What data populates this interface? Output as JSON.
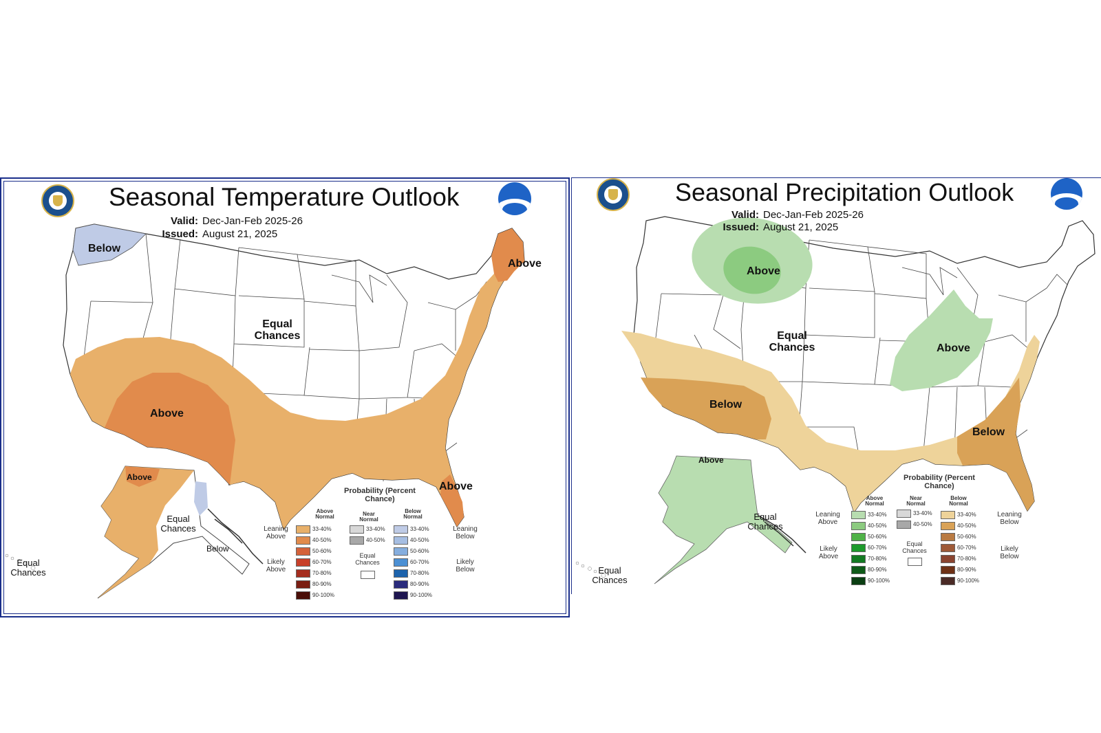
{
  "colors": {
    "above_33_40": "#E8B06A",
    "above_40_50": "#E18B4C",
    "above_50_60": "#D4623A",
    "above_60_70": "#C8402A",
    "above_70_80": "#A52D1E",
    "above_80_90": "#7A1E12",
    "above_90_100": "#4A0E08",
    "below_33_40": "#BFCBE6",
    "below_40_50": "#A6BEE2",
    "below_50_60": "#86AEDE",
    "below_60_70": "#4C90D4",
    "below_70_80": "#1D63AC",
    "below_80_90": "#2A2B7C",
    "below_90_100": "#1E1650",
    "wet_33_40": "#B8DDB0",
    "wet_40_50": "#8CCB80",
    "wet_50_60": "#4FB248",
    "wet_60_70": "#1E9A2C",
    "wet_70_80": "#137A22",
    "wet_80_90": "#0E5A18",
    "wet_90_100": "#0A3E12",
    "dry_33_40": "#EED39A",
    "dry_40_50": "#D9A257",
    "dry_50_60": "#B97A42",
    "dry_60_70": "#9E5A38",
    "dry_70_80": "#8A4430",
    "dry_80_90": "#6E3116",
    "dry_90_100": "#4A2A26",
    "near_33_40": "#D8D8D8",
    "near_40_50": "#A8A8A8",
    "panel_border": "#1A2E8A"
  },
  "temperature": {
    "title": "Seasonal Temperature Outlook",
    "valid_label": "Valid:",
    "valid_value": "Dec-Jan-Feb 2025-26",
    "issued_label": "Issued:",
    "issued_value": "August 21, 2025",
    "regions": {
      "nw_below": "Below",
      "ne_above": "Above",
      "center_ec": "Equal Chances",
      "sw_above": "Above",
      "fl_above": "Above",
      "ak_above": "Above",
      "ak_ec": "Equal Chances",
      "ak_below": "Below",
      "hi_ec": "Equal Chances"
    },
    "legend": {
      "title": "Probability (Percent Chance)",
      "above_header": "Above Normal",
      "near_header": "Near Normal",
      "below_header": "Below Normal",
      "leaning_above": "Leaning Above",
      "likely_above": "Likely Above",
      "leaning_below": "Leaning Below",
      "likely_below": "Likely Below",
      "equal_chances": "Equal Chances",
      "ranges": [
        "33-40%",
        "40-50%",
        "50-60%",
        "60-70%",
        "70-80%",
        "80-90%",
        "90-100%"
      ],
      "near_ranges": [
        "33-40%",
        "40-50%"
      ]
    }
  },
  "precipitation": {
    "title": "Seasonal Precipitation Outlook",
    "valid_label": "Valid:",
    "valid_value": "Dec-Jan-Feb 2025-26",
    "issued_label": "Issued:",
    "issued_value": "August 21, 2025",
    "regions": {
      "north_above": "Above",
      "center_ec": "Equal Chances",
      "ohio_above": "Above",
      "sw_below": "Below",
      "se_below": "Below",
      "ak_above": "Above",
      "ak_ec": "Equal Chances",
      "hi_ec": "Equal Chances"
    },
    "legend": {
      "title": "Probability (Percent Chance)",
      "above_header": "Above Normal",
      "near_header": "Near Normal",
      "below_header": "Below Normal",
      "leaning_above": "Leaning Above",
      "likely_above": "Likely Above",
      "leaning_below": "Leaning Below",
      "likely_below": "Likely Below",
      "equal_chances": "Equal Chances",
      "ranges": [
        "33-40%",
        "40-50%",
        "50-60%",
        "60-70%",
        "70-80%",
        "80-90%",
        "90-100%"
      ],
      "near_ranges": [
        "33-40%",
        "40-50%"
      ]
    }
  }
}
